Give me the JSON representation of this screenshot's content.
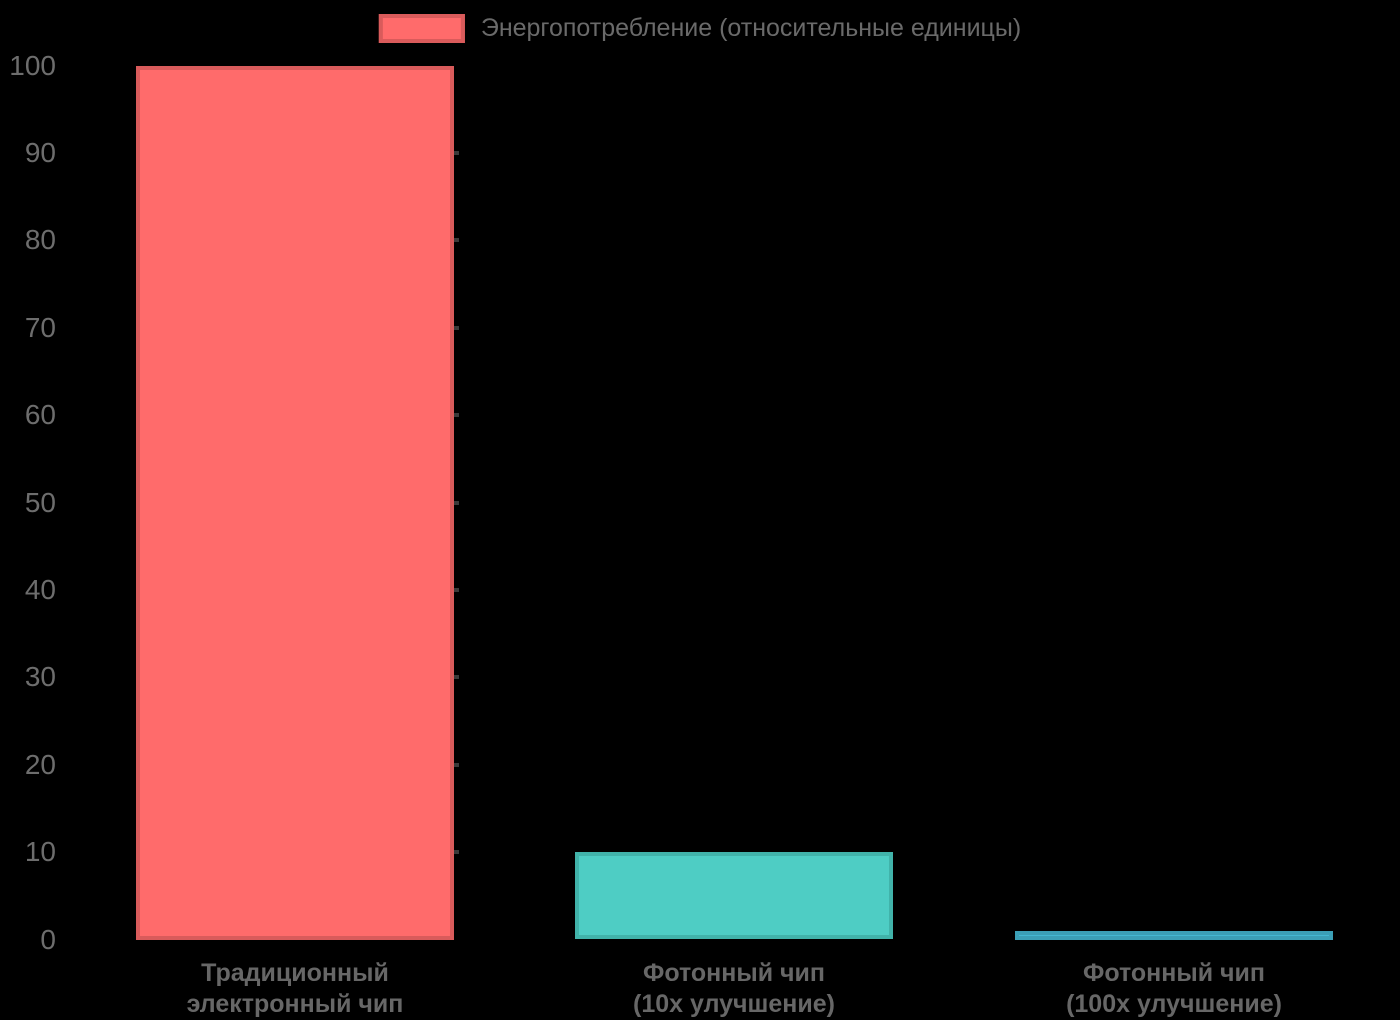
{
  "background_color": "#000000",
  "legend": {
    "label": "Энергопотребление (относительные единицы)",
    "swatch_fill": "#ff6b6b",
    "swatch_border": "#d95b5b",
    "position": "top"
  },
  "chart_data": {
    "type": "bar",
    "title": "",
    "xlabel": "",
    "ylabel": "",
    "categories": [
      "Традиционный электронный чип",
      "Фотонный чип (10x улучшение)",
      "Фотонный чип (100x улучшение)"
    ],
    "category_label_lines": [
      [
        "Традиционный",
        "электронный чип"
      ],
      [
        "Фотонный чип",
        "(10x улучшение)"
      ],
      [
        "Фотонный чип",
        "(100x улучшение)"
      ]
    ],
    "series": [
      {
        "name": "Энергопотребление (относительные единицы)",
        "values": [
          100,
          10,
          1
        ]
      }
    ],
    "bar_fill_colors": [
      "#ff6b6b",
      "#4ecdc4",
      "#45b7d1"
    ],
    "bar_border_colors": [
      "#d95b5b",
      "#41b3aa",
      "#3b9fb6"
    ],
    "ylim": [
      0,
      100
    ],
    "yticks": [
      0,
      10,
      20,
      30,
      40,
      50,
      60,
      70,
      80,
      90,
      100
    ],
    "gridline_stub_levels": [
      10,
      20,
      30,
      40,
      50,
      60,
      70,
      80,
      90
    ],
    "grid": false,
    "legend_position": "top",
    "tick_color": "#6d6d6d",
    "axis_label_color": "#676767"
  }
}
